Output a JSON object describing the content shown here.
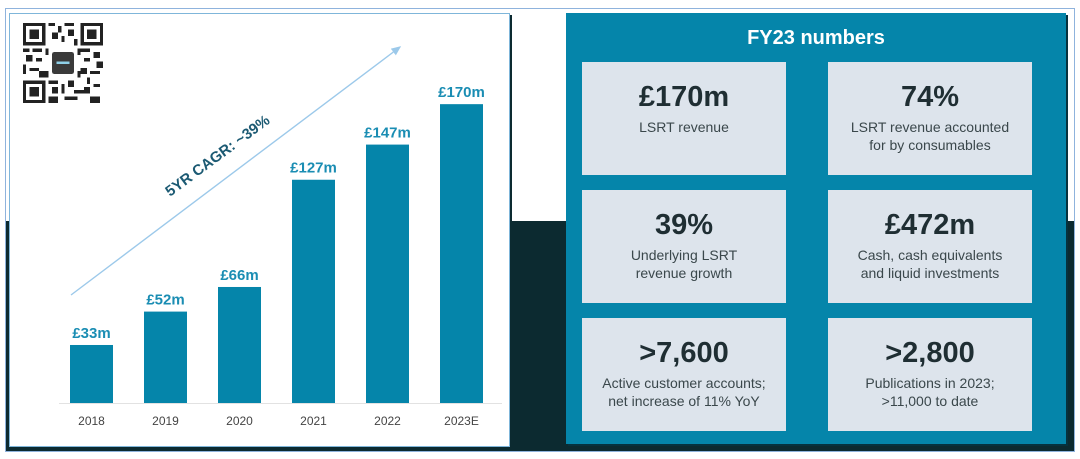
{
  "chart_data": {
    "type": "bar",
    "title": "",
    "xlabel": "",
    "ylabel": "",
    "categories": [
      "2018",
      "2019",
      "2020",
      "2021",
      "2022",
      "2023E"
    ],
    "values": [
      33,
      52,
      66,
      127,
      147,
      170
    ],
    "data_labels": [
      "£33m",
      "£52m",
      "£66m",
      "£127m",
      "£147m",
      "£170m"
    ],
    "unit": "£m",
    "ylim": [
      0,
      190
    ],
    "grid": false,
    "annotation": "5YR CAGR: ~39%",
    "bar_color": "#0585aa",
    "label_color": "#1a8db3",
    "arrow_color": "#9cc9ea"
  },
  "qr_code": {
    "icon": "qr-code-icon"
  },
  "fy23": {
    "title": "FY23 numbers",
    "cards": [
      {
        "value": "£170m",
        "description": [
          "LSRT revenue"
        ]
      },
      {
        "value": "74%",
        "description": [
          "LSRT revenue accounted",
          "for by consumables"
        ]
      },
      {
        "value": "39%",
        "description": [
          "Underlying LSRT",
          "revenue growth"
        ]
      },
      {
        "value": "£472m",
        "description": [
          "Cash, cash equivalents",
          "and liquid investments"
        ]
      },
      {
        "value": ">7,600",
        "description": [
          "Active customer accounts;",
          "net increase of 11% YoY"
        ]
      },
      {
        "value": ">2,800",
        "description": [
          "Publications in 2023;",
          ">11,000 to date"
        ]
      }
    ]
  },
  "colors": {
    "teal": "#0585aa",
    "dark": "#0c2a30",
    "card_bg": "#dde4ec"
  }
}
